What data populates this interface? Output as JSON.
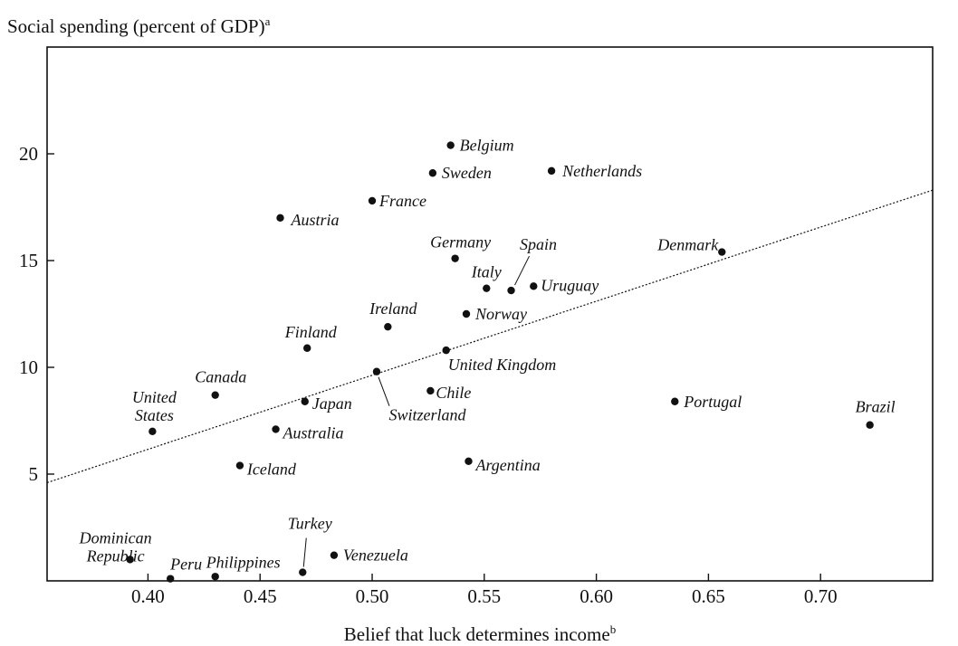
{
  "chart_data": {
    "type": "scatter",
    "title": "",
    "ylabel": "Social spending (percent of GDP)",
    "ylabel_sup": "a",
    "xlabel": "Belief that luck determines income",
    "xlabel_sup": "b",
    "xlim": [
      0.355,
      0.75
    ],
    "ylim": [
      0,
      25
    ],
    "xticks": [
      "0.40",
      "0.45",
      "0.50",
      "0.55",
      "0.60",
      "0.65",
      "0.70"
    ],
    "yticks": [
      "5",
      "10",
      "15",
      "20"
    ],
    "grid": false,
    "trendline": {
      "x": [
        0.355,
        0.75
      ],
      "y": [
        4.6,
        18.3
      ]
    },
    "points": [
      {
        "label": "Belgium",
        "x": 0.535,
        "y": 20.4
      },
      {
        "label": "Sweden",
        "x": 0.527,
        "y": 19.1
      },
      {
        "label": "Netherlands",
        "x": 0.58,
        "y": 19.2
      },
      {
        "label": "France",
        "x": 0.5,
        "y": 17.8
      },
      {
        "label": "Austria",
        "x": 0.459,
        "y": 17.0
      },
      {
        "label": "Germany",
        "x": 0.537,
        "y": 15.1
      },
      {
        "label": "Spain",
        "x": 0.562,
        "y": 13.6
      },
      {
        "label": "Denmark",
        "x": 0.656,
        "y": 15.4
      },
      {
        "label": "Italy",
        "x": 0.551,
        "y": 13.7
      },
      {
        "label": "Uruguay",
        "x": 0.572,
        "y": 13.8
      },
      {
        "label": "Ireland",
        "x": 0.507,
        "y": 11.9
      },
      {
        "label": "Norway",
        "x": 0.542,
        "y": 12.5
      },
      {
        "label": "Finland",
        "x": 0.471,
        "y": 10.9
      },
      {
        "label": "United Kingdom",
        "x": 0.533,
        "y": 10.8
      },
      {
        "label": "Switzerland",
        "x": 0.502,
        "y": 9.8
      },
      {
        "label": "Canada",
        "x": 0.43,
        "y": 8.7
      },
      {
        "label": "Chile",
        "x": 0.526,
        "y": 8.9
      },
      {
        "label": "Japan",
        "x": 0.47,
        "y": 8.4
      },
      {
        "label": "Portugal",
        "x": 0.635,
        "y": 8.4
      },
      {
        "label": "Brazil",
        "x": 0.722,
        "y": 7.3
      },
      {
        "label": "United States",
        "x": 0.402,
        "y": 7.0
      },
      {
        "label": "Australia",
        "x": 0.457,
        "y": 7.1
      },
      {
        "label": "Iceland",
        "x": 0.441,
        "y": 5.4
      },
      {
        "label": "Argentina",
        "x": 0.543,
        "y": 5.6
      },
      {
        "label": "Turkey",
        "x": 0.469,
        "y": 0.4
      },
      {
        "label": "Venezuela",
        "x": 0.483,
        "y": 1.2
      },
      {
        "label": "Dominican Republic",
        "x": 0.392,
        "y": 1.0
      },
      {
        "label": "Peru",
        "x": 0.41,
        "y": 0.1
      },
      {
        "label": "Philippines",
        "x": 0.43,
        "y": 0.2
      }
    ]
  }
}
